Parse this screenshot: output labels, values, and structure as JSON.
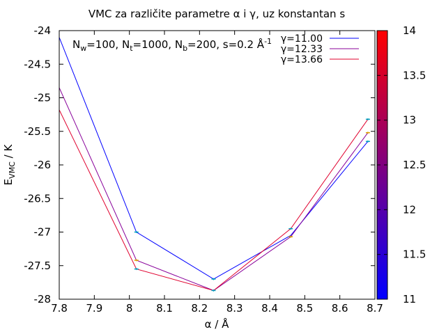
{
  "chart_data": {
    "type": "line",
    "title": "VMC za različite parametre α i γ, uz konstantan s",
    "annotation": {
      "parts": [
        {
          "t": "N",
          "s": "normal"
        },
        {
          "t": "w",
          "s": "sub"
        },
        {
          "t": "=100, ",
          "s": "normal"
        },
        {
          "t": "N",
          "s": "normal"
        },
        {
          "t": "t",
          "s": "sub"
        },
        {
          "t": "=1000, ",
          "s": "normal"
        },
        {
          "t": "N",
          "s": "normal"
        },
        {
          "t": "b",
          "s": "sub"
        },
        {
          "t": "=200, s=0.2 Å",
          "s": "normal"
        },
        {
          "t": "-1",
          "s": "sup"
        }
      ]
    },
    "xlabel": "α / Å",
    "ylabel_main": "E",
    "ylabel_sub": "VMC",
    "ylabel_rest": " / K",
    "xlim": [
      7.8,
      8.7
    ],
    "ylim": [
      -28,
      -24
    ],
    "xticks": [
      7.8,
      7.9,
      8.0,
      8.1,
      8.2,
      8.3,
      8.4,
      8.5,
      8.6,
      8.7
    ],
    "xtick_labels": [
      "7.8",
      "7.9",
      "8",
      "8.1",
      "8.2",
      "8.3",
      "8.4",
      "8.5",
      "8.6",
      "8.7"
    ],
    "yticks": [
      -24,
      -24.5,
      -25,
      -25.5,
      -26,
      -26.5,
      -27,
      -27.5,
      -28
    ],
    "ytick_labels": [
      "-24",
      "-24.5",
      "-25",
      "-25.5",
      "-26",
      "-26.5",
      "-27",
      "-27.5",
      "-28"
    ],
    "series": [
      {
        "name": "γ=11.00",
        "gamma": 11.0,
        "color": "#0000ff",
        "x": [
          7.8,
          8.02,
          8.24,
          8.46,
          8.68
        ],
        "y": [
          -24.1,
          -27.0,
          -27.7,
          -27.05,
          -25.65
        ]
      },
      {
        "name": "γ=12.33",
        "gamma": 12.33,
        "color": "#88009a",
        "x": [
          7.8,
          8.02,
          8.24,
          8.46,
          8.68
        ],
        "y": [
          -24.85,
          -27.42,
          -27.87,
          -27.07,
          -25.52
        ]
      },
      {
        "name": "γ=13.66",
        "gamma": 13.66,
        "color": "#e0002e",
        "x": [
          7.8,
          8.02,
          8.24,
          8.46,
          8.68
        ],
        "y": [
          -25.18,
          -27.55,
          -27.87,
          -26.95,
          -25.32
        ]
      }
    ],
    "error_points": [
      {
        "x": 8.02,
        "y": -27.0,
        "color": "#00a0c0"
      },
      {
        "x": 8.02,
        "y": -27.42,
        "color": "#e0a000"
      },
      {
        "x": 8.02,
        "y": -27.55,
        "color": "#00a0c0"
      },
      {
        "x": 8.24,
        "y": -27.7,
        "color": "#00a0c0"
      },
      {
        "x": 8.24,
        "y": -27.87,
        "color": "#00a0c0"
      },
      {
        "x": 8.46,
        "y": -26.95,
        "color": "#00a0c0"
      },
      {
        "x": 8.46,
        "y": -27.07,
        "color": "#e0a000"
      },
      {
        "x": 8.68,
        "y": -25.32,
        "color": "#00a0c0"
      },
      {
        "x": 8.68,
        "y": -25.52,
        "color": "#e0a000"
      },
      {
        "x": 8.68,
        "y": -25.65,
        "color": "#00a0c0"
      }
    ],
    "colorbar": {
      "range": [
        11,
        14
      ],
      "ticks": [
        11,
        11.5,
        12,
        12.5,
        13,
        13.5,
        14
      ],
      "tick_labels": [
        "11",
        "11.5",
        "12",
        "12.5",
        "13",
        "13.5",
        "14"
      ],
      "color_low": "#0000ff",
      "color_high": "#ff0000"
    },
    "legend_position": "top-right"
  }
}
